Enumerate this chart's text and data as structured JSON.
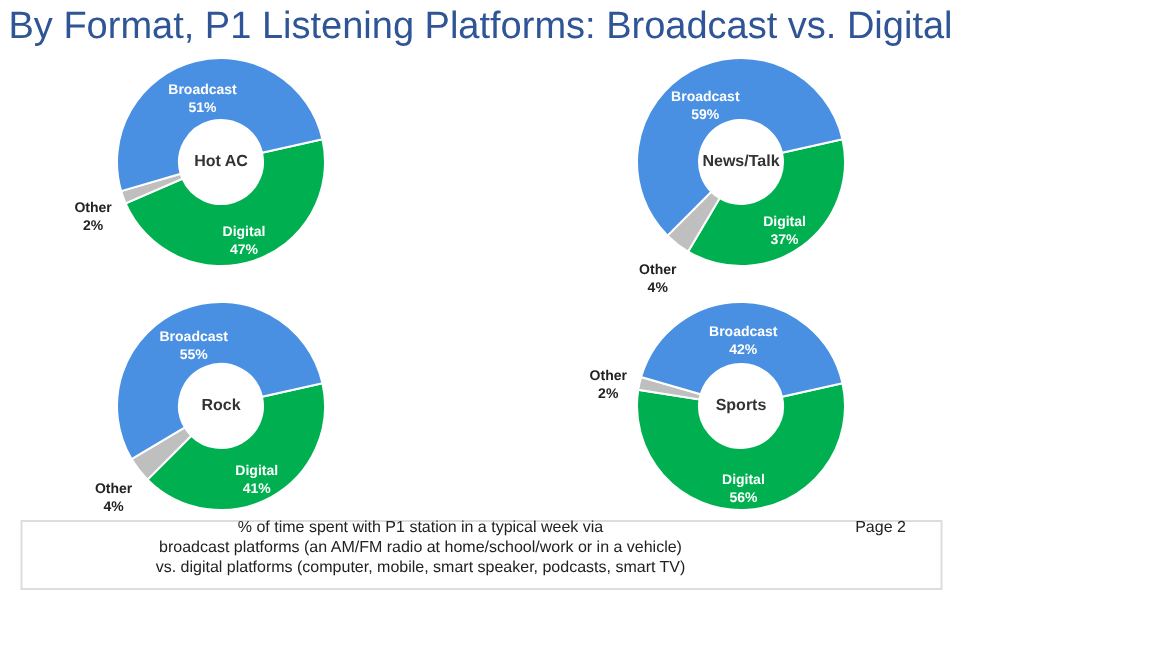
{
  "chart_data": [
    {
      "type": "other",
      "title": "By Format, P1 Listening Platforms: Broadcast vs. Digital",
      "annotations": [
        "% of time spent with P1 station in a typical week via\nbroadcast platforms (an AM/FM radio at home/school/work or in a vehicle)\nvs. digital platforms (computer, mobile, smart speaker, podcasts, smart TV)",
        "Page 2"
      ]
    },
    {
      "type": "donut",
      "title": "Hot AC",
      "categories": [
        "Digital",
        "Other",
        "Broadcast"
      ],
      "values": [
        47,
        2,
        51
      ],
      "value_labels": [
        "47%",
        "2%",
        "51%"
      ],
      "colors": [
        "#00b050",
        "#bfbfbf",
        "#4a90e2"
      ]
    },
    {
      "type": "donut",
      "title": "News/Talk",
      "categories": [
        "Digital",
        "Other",
        "Broadcast"
      ],
      "values": [
        37,
        4,
        59
      ],
      "value_labels": [
        "37%",
        "4%",
        "59%"
      ],
      "colors": [
        "#00b050",
        "#bfbfbf",
        "#4a90e2"
      ]
    },
    {
      "type": "donut",
      "title": "Rock",
      "categories": [
        "Digital",
        "Other",
        "Broadcast"
      ],
      "values": [
        41,
        4,
        55
      ],
      "value_labels": [
        "41%",
        "4%",
        "55%"
      ],
      "colors": [
        "#00b050",
        "#bfbfbf",
        "#4a90e2"
      ]
    },
    {
      "type": "donut",
      "title": "Sports",
      "categories": [
        "Digital",
        "Other",
        "Broadcast"
      ],
      "values": [
        56,
        2,
        42
      ],
      "value_labels": [
        "56%",
        "2%",
        "42%"
      ],
      "colors": [
        "#00b050",
        "#bfbfbf",
        "#4a90e2"
      ]
    }
  ]
}
